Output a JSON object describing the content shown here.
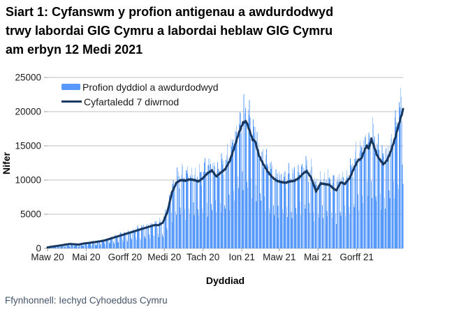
{
  "title_lines": [
    "Siart 1: Cyfanswm y profion antigenau a awdurdodwyd",
    "trwy labordai GIG Cymru a labordai heblaw GIG Cymru",
    "am erbyn 12 Medi 2021"
  ],
  "legend": {
    "bars_label": "Profion dyddiol a awdurdodwyd",
    "line_label": "Cyfartaledd 7 diwrnod"
  },
  "axes": {
    "y_label": "Nifer",
    "x_label": "Dyddiad",
    "y_ticks": [
      0,
      5000,
      10000,
      15000,
      20000,
      25000
    ],
    "x_ticks": [
      {
        "label": "Maw 20",
        "date": "2020-03-01"
      },
      {
        "label": "Mai 20",
        "date": "2020-05-01"
      },
      {
        "label": "Gorff 20",
        "date": "2020-07-01"
      },
      {
        "label": "Medi 20",
        "date": "2020-09-01"
      },
      {
        "label": "Tach 20",
        "date": "2020-11-01"
      },
      {
        "label": "Ion 21",
        "date": "2021-01-01"
      },
      {
        "label": "Maw 21",
        "date": "2021-03-01"
      },
      {
        "label": "Mai 21",
        "date": "2021-05-01"
      },
      {
        "label": "Gorff 21",
        "date": "2021-07-01"
      }
    ]
  },
  "source": "Ffynhonnell: Iechyd Cyhoeddus Cymru",
  "colors": {
    "bar": "#5699FA",
    "line": "#17375E",
    "grid": "#C0C0C0",
    "tick": "#9B9B9B"
  },
  "chart_data": {
    "type": "bar",
    "title": "Siart 1: Cyfanswm y profion antigenau a awdurdodwyd trwy labordai GIG Cymru a labordai heblaw GIG Cymru am erbyn 12 Medi 2021",
    "xlabel": "Dyddiad",
    "ylabel": "Nifer",
    "ylim": [
      0,
      25000
    ],
    "grid": true,
    "legend_position": "top-left-inside",
    "start_date": "2020-03-01",
    "end_date": "2021-09-12",
    "series": [
      {
        "name": "Profion dyddiol a awdurdodwyd",
        "type": "bar",
        "note_max_daily_value": 23600,
        "weekday_factors_sun_to_sat": [
          0.48,
          1.12,
          1.14,
          1.13,
          1.08,
          1.01,
          0.6
        ],
        "wobble": [
          0.07,
          0.05
        ]
      },
      {
        "name": "Cyfartaledd 7 diwrnod",
        "type": "line",
        "points": [
          [
            "2020-03-01",
            150
          ],
          [
            "2020-03-08",
            260
          ],
          [
            "2020-03-15",
            350
          ],
          [
            "2020-03-22",
            450
          ],
          [
            "2020-03-29",
            560
          ],
          [
            "2020-04-05",
            650
          ],
          [
            "2020-04-12",
            610
          ],
          [
            "2020-04-19",
            560
          ],
          [
            "2020-04-26",
            700
          ],
          [
            "2020-05-03",
            780
          ],
          [
            "2020-05-10",
            870
          ],
          [
            "2020-05-17",
            960
          ],
          [
            "2020-05-24",
            1060
          ],
          [
            "2020-05-31",
            1200
          ],
          [
            "2020-06-07",
            1400
          ],
          [
            "2020-06-14",
            1600
          ],
          [
            "2020-06-21",
            1800
          ],
          [
            "2020-06-28",
            2000
          ],
          [
            "2020-07-05",
            2200
          ],
          [
            "2020-07-12",
            2400
          ],
          [
            "2020-07-19",
            2600
          ],
          [
            "2020-07-26",
            2800
          ],
          [
            "2020-08-02",
            3000
          ],
          [
            "2020-08-09",
            3200
          ],
          [
            "2020-08-16",
            3400
          ],
          [
            "2020-08-23",
            3400
          ],
          [
            "2020-08-30",
            3800
          ],
          [
            "2020-09-06",
            5400
          ],
          [
            "2020-09-13",
            8200
          ],
          [
            "2020-09-20",
            9600
          ],
          [
            "2020-09-27",
            10000
          ],
          [
            "2020-10-04",
            9900
          ],
          [
            "2020-10-11",
            10100
          ],
          [
            "2020-10-18",
            10000
          ],
          [
            "2020-10-25",
            9800
          ],
          [
            "2020-11-01",
            10300
          ],
          [
            "2020-11-08",
            11000
          ],
          [
            "2020-11-15",
            11400
          ],
          [
            "2020-11-22",
            10500
          ],
          [
            "2020-11-29",
            11100
          ],
          [
            "2020-12-06",
            11600
          ],
          [
            "2020-12-13",
            12800
          ],
          [
            "2020-12-20",
            14700
          ],
          [
            "2020-12-27",
            16800
          ],
          [
            "2021-01-03",
            18400
          ],
          [
            "2021-01-08",
            18600
          ],
          [
            "2021-01-13",
            17300
          ],
          [
            "2021-01-18",
            15900
          ],
          [
            "2021-01-22",
            15700
          ],
          [
            "2021-01-28",
            13600
          ],
          [
            "2021-02-04",
            12300
          ],
          [
            "2021-02-11",
            11200
          ],
          [
            "2021-02-18",
            10400
          ],
          [
            "2021-02-25",
            9900
          ],
          [
            "2021-03-04",
            9700
          ],
          [
            "2021-03-11",
            9600
          ],
          [
            "2021-03-18",
            9800
          ],
          [
            "2021-03-25",
            9900
          ],
          [
            "2021-04-01",
            10300
          ],
          [
            "2021-04-08",
            11000
          ],
          [
            "2021-04-13",
            11300
          ],
          [
            "2021-04-20",
            10400
          ],
          [
            "2021-04-28",
            8300
          ],
          [
            "2021-05-05",
            9500
          ],
          [
            "2021-05-12",
            9400
          ],
          [
            "2021-05-19",
            9300
          ],
          [
            "2021-05-26",
            8700
          ],
          [
            "2021-05-30",
            8500
          ],
          [
            "2021-06-06",
            9700
          ],
          [
            "2021-06-12",
            9400
          ],
          [
            "2021-06-20",
            10300
          ],
          [
            "2021-06-27",
            11800
          ],
          [
            "2021-07-03",
            12900
          ],
          [
            "2021-07-08",
            13100
          ],
          [
            "2021-07-14",
            14500
          ],
          [
            "2021-07-17",
            15000
          ],
          [
            "2021-07-20",
            14600
          ],
          [
            "2021-07-24",
            16000
          ],
          [
            "2021-07-28",
            15000
          ],
          [
            "2021-08-02",
            13600
          ],
          [
            "2021-08-07",
            12900
          ],
          [
            "2021-08-12",
            12300
          ],
          [
            "2021-08-18",
            12900
          ],
          [
            "2021-08-24",
            14300
          ],
          [
            "2021-08-31",
            16300
          ],
          [
            "2021-09-04",
            17700
          ],
          [
            "2021-09-08",
            19000
          ],
          [
            "2021-09-12",
            20300
          ]
        ]
      }
    ]
  }
}
